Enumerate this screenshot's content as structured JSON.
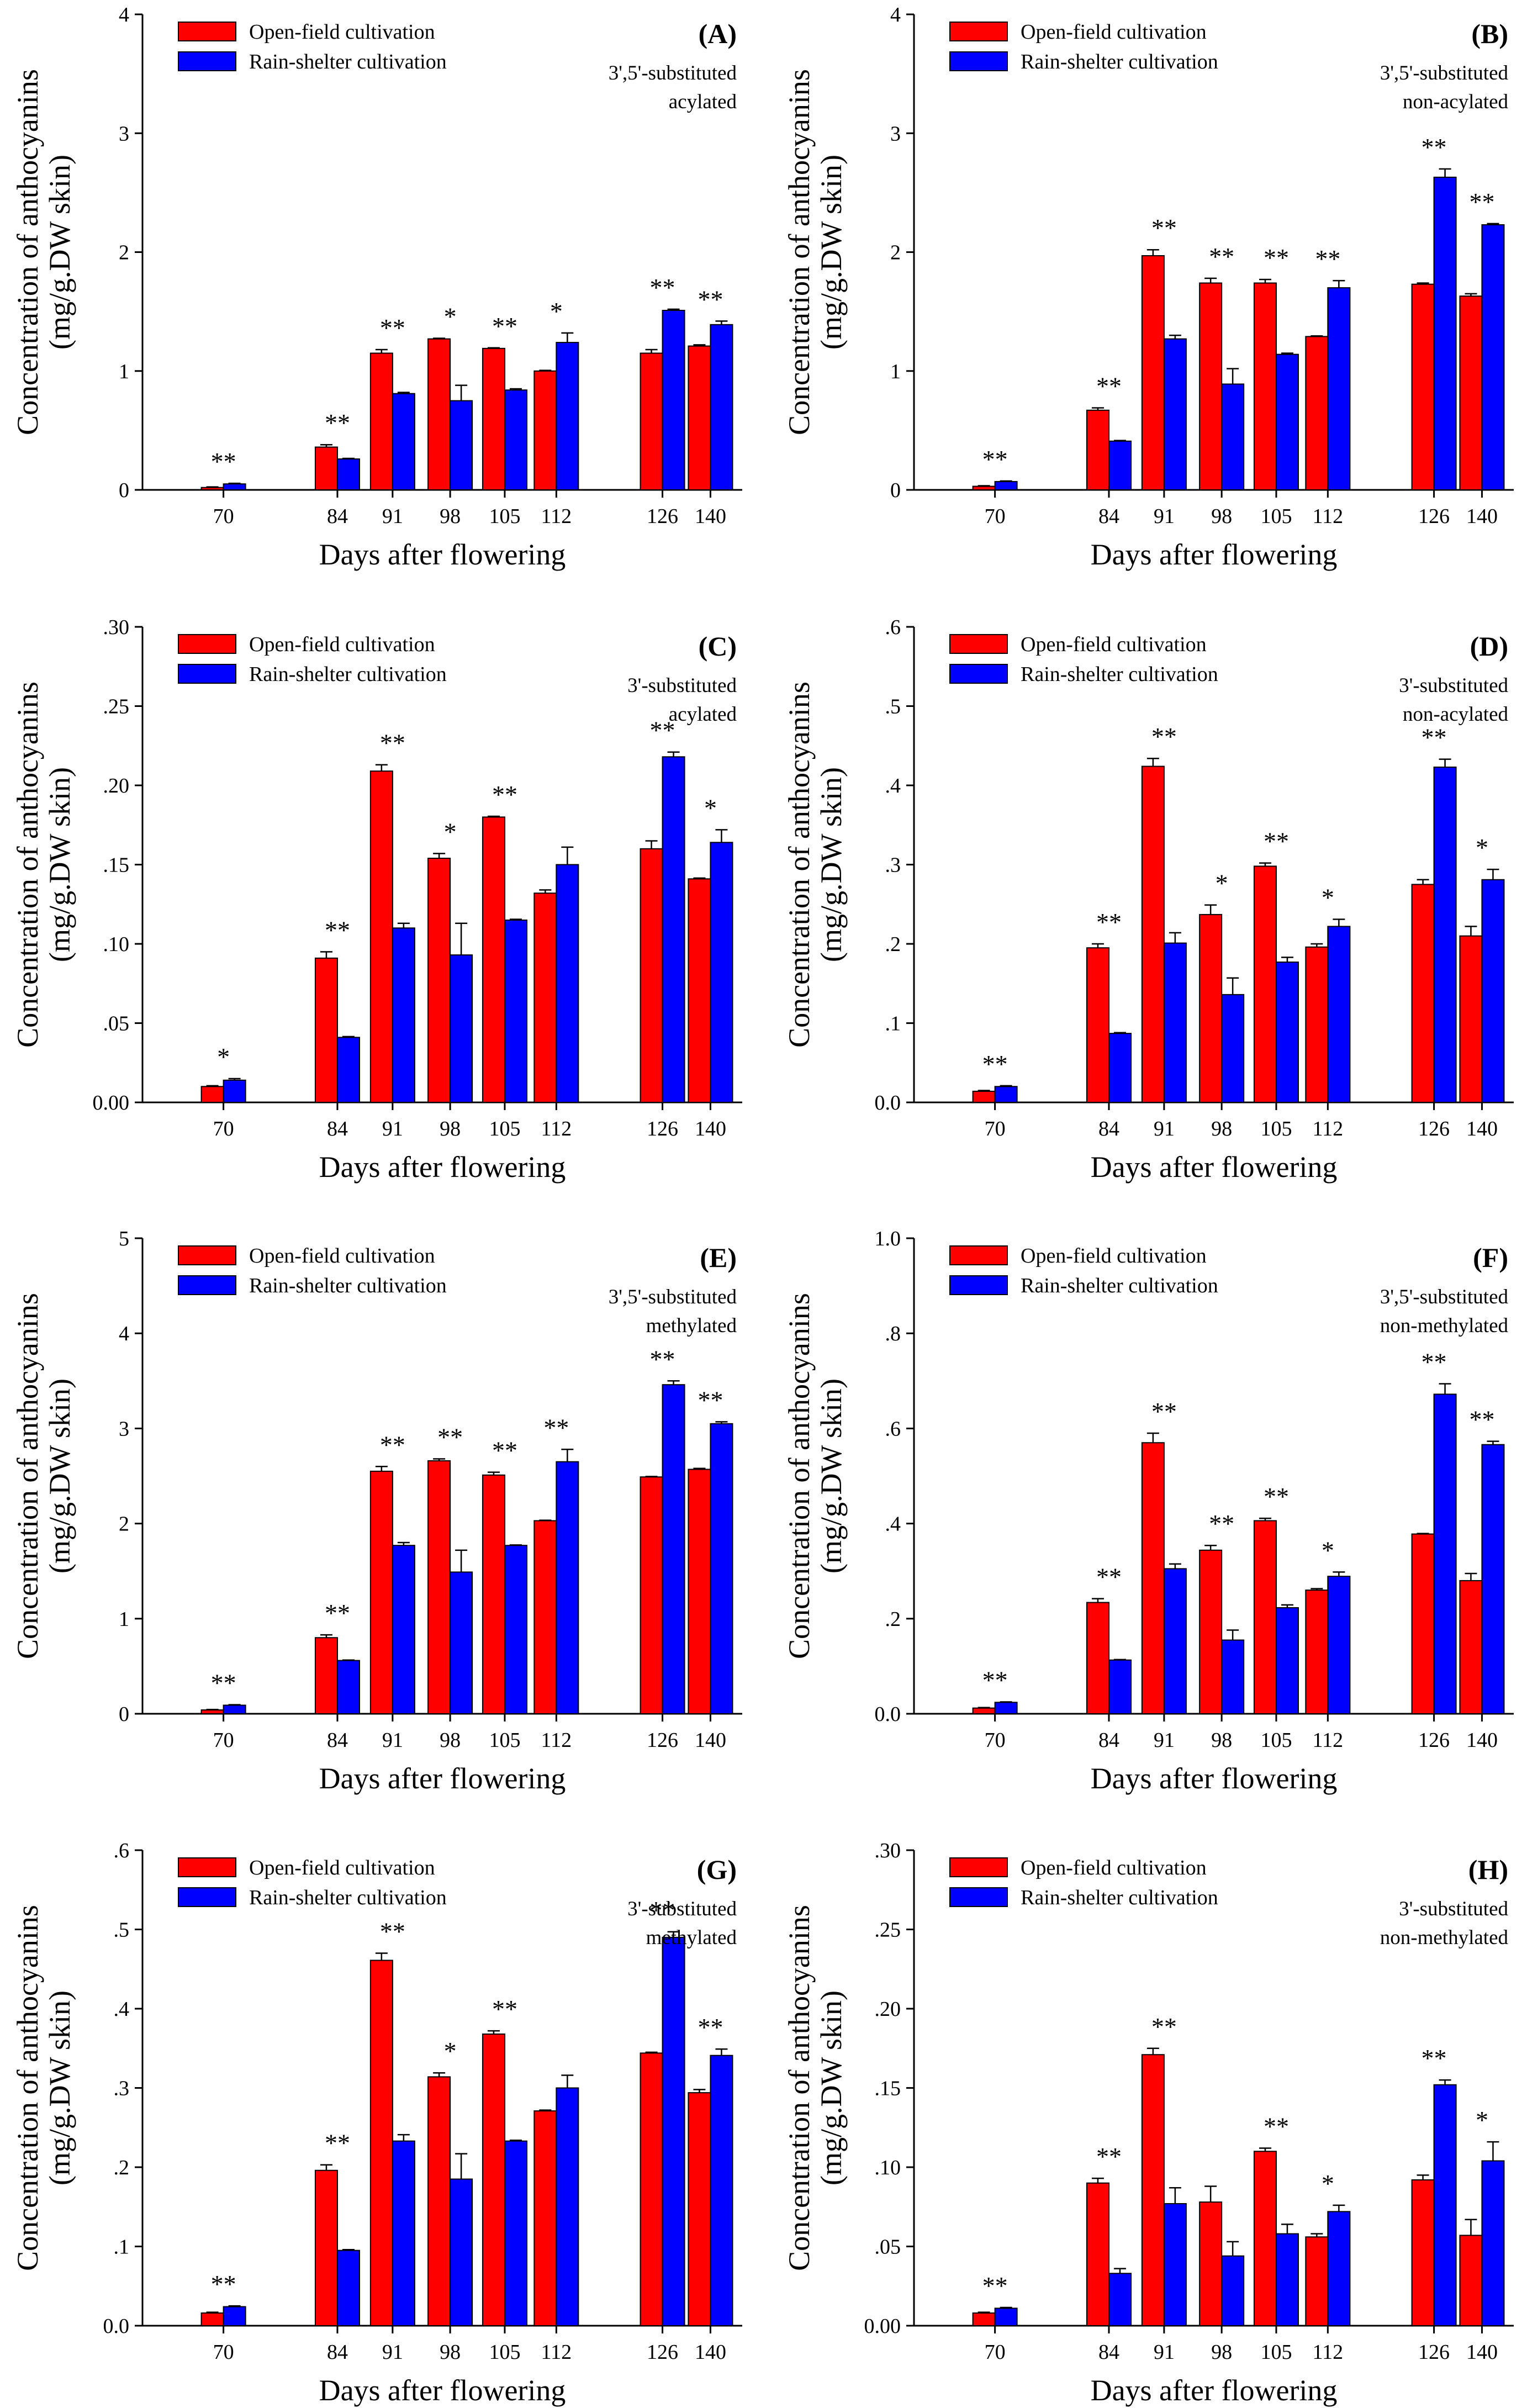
{
  "figure": {
    "xlabel": "Days after flowering",
    "ylabel_line1": "Concentration of anthocyanins",
    "ylabel_line2": "(mg/g.DW skin)",
    "legend": [
      "Open-field cultivation",
      "Rain-shelter cultivation"
    ],
    "colors": {
      "open_field": "#ff0000",
      "rain_shelter": "#0000ff"
    }
  },
  "chart_data": [
    {
      "type": "bar",
      "panel": "(A)",
      "annotation": [
        "3',5'-substituted",
        "acylated"
      ],
      "categories": [
        "70",
        "84",
        "91",
        "98",
        "105",
        "112",
        "126",
        "140"
      ],
      "ylim": [
        0,
        4
      ],
      "yticks": [
        "0",
        "1",
        "2",
        "3",
        "4"
      ],
      "series": [
        {
          "name": "Open-field cultivation",
          "values": [
            0.02,
            0.36,
            1.15,
            1.27,
            1.19,
            1.0,
            1.15,
            1.21
          ],
          "errors": [
            0.005,
            0.02,
            0.03,
            0.005,
            0.005,
            0.005,
            0.03,
            0.01
          ]
        },
        {
          "name": "Rain-shelter cultivation",
          "values": [
            0.05,
            0.26,
            0.81,
            0.75,
            0.84,
            1.24,
            1.51,
            1.39
          ],
          "errors": [
            0.005,
            0.005,
            0.01,
            0.13,
            0.01,
            0.08,
            0.01,
            0.03
          ]
        }
      ],
      "significance": [
        "**",
        "**",
        "**",
        "*",
        "**",
        "*",
        "**",
        "**"
      ]
    },
    {
      "type": "bar",
      "panel": "(B)",
      "annotation": [
        "3',5'-substituted",
        "non-acylated"
      ],
      "categories": [
        "70",
        "84",
        "91",
        "98",
        "105",
        "112",
        "126",
        "140"
      ],
      "ylim": [
        0,
        4
      ],
      "yticks": [
        "0",
        "1",
        "2",
        "3",
        "4"
      ],
      "series": [
        {
          "name": "Open-field cultivation",
          "values": [
            0.03,
            0.67,
            1.97,
            1.74,
            1.74,
            1.29,
            1.73,
            1.63
          ],
          "errors": [
            0.005,
            0.02,
            0.05,
            0.04,
            0.03,
            0.005,
            0.01,
            0.02
          ]
        },
        {
          "name": "Rain-shelter cultivation",
          "values": [
            0.07,
            0.41,
            1.27,
            0.89,
            1.14,
            1.7,
            2.63,
            2.23
          ],
          "errors": [
            0.005,
            0.005,
            0.03,
            0.13,
            0.01,
            0.06,
            0.07,
            0.01
          ]
        }
      ],
      "significance": [
        "**",
        "**",
        "**",
        "**",
        "**",
        "**",
        "**",
        "**"
      ]
    },
    {
      "type": "bar",
      "panel": "(C)",
      "annotation": [
        "3'-substituted",
        "acylated"
      ],
      "categories": [
        "70",
        "84",
        "91",
        "98",
        "105",
        "112",
        "126",
        "140"
      ],
      "ylim": [
        0,
        0.3
      ],
      "yticks": [
        "0.00",
        ".05",
        ".10",
        ".15",
        ".20",
        ".25",
        ".30"
      ],
      "series": [
        {
          "name": "Open-field cultivation",
          "values": [
            0.01,
            0.091,
            0.209,
            0.154,
            0.18,
            0.132,
            0.16,
            0.141
          ],
          "errors": [
            0.0005,
            0.004,
            0.004,
            0.003,
            0.0005,
            0.002,
            0.005,
            0.0005
          ]
        },
        {
          "name": "Rain-shelter cultivation",
          "values": [
            0.014,
            0.041,
            0.11,
            0.093,
            0.115,
            0.15,
            0.218,
            0.164
          ],
          "errors": [
            0.001,
            0.0005,
            0.003,
            0.02,
            0.0005,
            0.011,
            0.003,
            0.008
          ]
        }
      ],
      "significance": [
        "*",
        "**",
        "**",
        "*",
        "**",
        "",
        "**",
        "*"
      ]
    },
    {
      "type": "bar",
      "panel": "(D)",
      "annotation": [
        "3'-substituted",
        "non-acylated"
      ],
      "categories": [
        "70",
        "84",
        "91",
        "98",
        "105",
        "112",
        "126",
        "140"
      ],
      "ylim": [
        0,
        0.6
      ],
      "yticks": [
        "0.0",
        ".1",
        ".2",
        ".3",
        ".4",
        ".5",
        ".6"
      ],
      "series": [
        {
          "name": "Open-field cultivation",
          "values": [
            0.014,
            0.195,
            0.424,
            0.237,
            0.298,
            0.196,
            0.275,
            0.21
          ],
          "errors": [
            0.001,
            0.005,
            0.01,
            0.012,
            0.004,
            0.004,
            0.006,
            0.012
          ]
        },
        {
          "name": "Rain-shelter cultivation",
          "values": [
            0.02,
            0.087,
            0.201,
            0.136,
            0.177,
            0.222,
            0.423,
            0.281
          ],
          "errors": [
            0.001,
            0.001,
            0.013,
            0.021,
            0.006,
            0.009,
            0.01,
            0.013
          ]
        }
      ],
      "significance": [
        "**",
        "**",
        "**",
        "*",
        "**",
        "*",
        "**",
        "*"
      ]
    },
    {
      "type": "bar",
      "panel": "(E)",
      "annotation": [
        "3',5'-substituted",
        "methylated"
      ],
      "categories": [
        "70",
        "84",
        "91",
        "98",
        "105",
        "112",
        "126",
        "140"
      ],
      "ylim": [
        0,
        5
      ],
      "yticks": [
        "0",
        "1",
        "2",
        "3",
        "4",
        "5"
      ],
      "series": [
        {
          "name": "Open-field cultivation",
          "values": [
            0.04,
            0.8,
            2.55,
            2.66,
            2.51,
            2.03,
            2.49,
            2.57
          ],
          "errors": [
            0.005,
            0.03,
            0.05,
            0.02,
            0.03,
            0.005,
            0.005,
            0.01
          ]
        },
        {
          "name": "Rain-shelter cultivation",
          "values": [
            0.09,
            0.56,
            1.77,
            1.49,
            1.77,
            2.65,
            3.46,
            3.05
          ],
          "errors": [
            0.005,
            0.005,
            0.03,
            0.23,
            0.005,
            0.13,
            0.04,
            0.02
          ]
        }
      ],
      "significance": [
        "**",
        "**",
        "**",
        "**",
        "**",
        "**",
        "**",
        "**"
      ]
    },
    {
      "type": "bar",
      "panel": "(F)",
      "annotation": [
        "3',5'-substituted",
        "non-methylated"
      ],
      "categories": [
        "70",
        "84",
        "91",
        "98",
        "105",
        "112",
        "126",
        "140"
      ],
      "ylim": [
        0,
        1.0
      ],
      "yticks": [
        "0.0",
        ".2",
        ".4",
        ".6",
        ".8",
        "1.0"
      ],
      "series": [
        {
          "name": "Open-field cultivation",
          "values": [
            0.012,
            0.234,
            0.57,
            0.344,
            0.406,
            0.26,
            0.378,
            0.28
          ],
          "errors": [
            0.001,
            0.008,
            0.02,
            0.01,
            0.005,
            0.003,
            0.001,
            0.015
          ]
        },
        {
          "name": "Rain-shelter cultivation",
          "values": [
            0.024,
            0.113,
            0.305,
            0.155,
            0.223,
            0.289,
            0.672,
            0.566
          ],
          "errors": [
            0.001,
            0.001,
            0.01,
            0.021,
            0.006,
            0.009,
            0.022,
            0.007
          ]
        }
      ],
      "significance": [
        "**",
        "**",
        "**",
        "**",
        "**",
        "*",
        "**",
        "**"
      ]
    },
    {
      "type": "bar",
      "panel": "(G)",
      "annotation": [
        "3'-substituted",
        "methylated"
      ],
      "categories": [
        "70",
        "84",
        "91",
        "98",
        "105",
        "112",
        "126",
        "140"
      ],
      "ylim": [
        0,
        0.6
      ],
      "yticks": [
        "0.0",
        ".1",
        ".2",
        ".3",
        ".4",
        ".5",
        ".6"
      ],
      "series": [
        {
          "name": "Open-field cultivation",
          "values": [
            0.016,
            0.196,
            0.461,
            0.314,
            0.368,
            0.271,
            0.344,
            0.294
          ],
          "errors": [
            0.001,
            0.007,
            0.009,
            0.005,
            0.004,
            0.001,
            0.001,
            0.004
          ]
        },
        {
          "name": "Rain-shelter cultivation",
          "values": [
            0.024,
            0.095,
            0.233,
            0.185,
            0.233,
            0.3,
            0.49,
            0.341
          ],
          "errors": [
            0.001,
            0.001,
            0.008,
            0.032,
            0.001,
            0.016,
            0.007,
            0.008
          ]
        }
      ],
      "significance": [
        "**",
        "**",
        "**",
        "*",
        "**",
        "",
        "**",
        "**"
      ]
    },
    {
      "type": "bar",
      "panel": "(H)",
      "annotation": [
        "3'-substituted",
        "non-methylated"
      ],
      "categories": [
        "70",
        "84",
        "91",
        "98",
        "105",
        "112",
        "126",
        "140"
      ],
      "ylim": [
        0,
        0.3
      ],
      "yticks": [
        "0.00",
        ".05",
        ".10",
        ".15",
        ".20",
        ".25",
        ".30"
      ],
      "series": [
        {
          "name": "Open-field cultivation",
          "values": [
            0.008,
            0.09,
            0.171,
            0.078,
            0.11,
            0.056,
            0.092,
            0.057
          ],
          "errors": [
            0.0005,
            0.003,
            0.004,
            0.01,
            0.002,
            0.002,
            0.003,
            0.01
          ]
        },
        {
          "name": "Rain-shelter cultivation",
          "values": [
            0.011,
            0.033,
            0.077,
            0.044,
            0.058,
            0.072,
            0.152,
            0.104
          ],
          "errors": [
            0.0005,
            0.003,
            0.01,
            0.009,
            0.006,
            0.004,
            0.003,
            0.012
          ]
        }
      ],
      "significance": [
        "**",
        "**",
        "**",
        "",
        "**",
        "*",
        "**",
        "*"
      ]
    }
  ]
}
